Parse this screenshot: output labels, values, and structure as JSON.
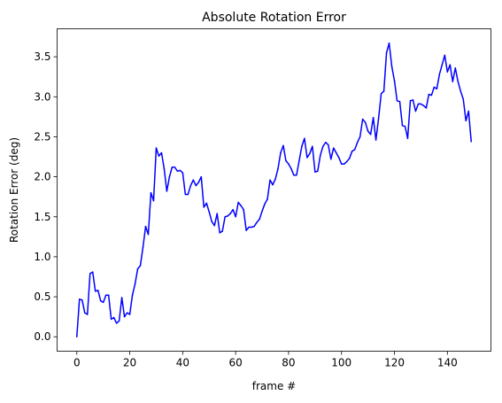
{
  "chart_data": {
    "type": "line",
    "title": "Absolute Rotation Error",
    "xlabel": "frame #",
    "ylabel": "Rotation Error (deg)",
    "xlim": [
      -7.45,
      156.45
    ],
    "ylim": [
      -0.18,
      3.85
    ],
    "grid": false,
    "x_ticks": [
      0,
      20,
      40,
      60,
      80,
      100,
      120,
      140
    ],
    "x_tick_labels": [
      "0",
      "20",
      "40",
      "60",
      "80",
      "100",
      "120",
      "140"
    ],
    "y_ticks": [
      0.0,
      0.5,
      1.0,
      1.5,
      2.0,
      2.5,
      3.0,
      3.5
    ],
    "y_tick_labels": [
      "0.0",
      "0.5",
      "1.0",
      "1.5",
      "2.0",
      "2.5",
      "3.0",
      "3.5"
    ],
    "line_color": "#0000ff",
    "series": [
      {
        "name": "",
        "x": [
          0,
          1,
          2,
          3,
          4,
          5,
          6,
          7,
          8,
          9,
          10,
          11,
          12,
          13,
          14,
          15,
          16,
          17,
          18,
          19,
          20,
          21,
          22,
          23,
          24,
          25,
          26,
          27,
          28,
          29,
          30,
          31,
          32,
          33,
          34,
          35,
          36,
          37,
          38,
          39,
          40,
          41,
          42,
          43,
          44,
          45,
          46,
          47,
          48,
          49,
          50,
          51,
          52,
          53,
          54,
          55,
          56,
          57,
          58,
          59,
          60,
          61,
          62,
          63,
          64,
          65,
          66,
          67,
          68,
          69,
          70,
          71,
          72,
          73,
          74,
          75,
          76,
          77,
          78,
          79,
          80,
          81,
          82,
          83,
          84,
          85,
          86,
          87,
          88,
          89,
          90,
          91,
          92,
          93,
          94,
          95,
          96,
          97,
          98,
          99,
          100,
          101,
          102,
          103,
          104,
          105,
          106,
          107,
          108,
          109,
          110,
          111,
          112,
          113,
          114,
          115,
          116,
          117,
          118,
          119,
          120,
          121,
          122,
          123,
          124,
          125,
          126,
          127,
          128,
          129,
          130,
          131,
          132,
          133,
          134,
          135,
          136,
          137,
          138,
          139,
          140,
          141,
          142,
          143,
          144,
          145,
          146,
          147,
          148,
          149
        ],
        "y": [
          0.0,
          0.47,
          0.46,
          0.3,
          0.28,
          0.79,
          0.81,
          0.57,
          0.58,
          0.45,
          0.43,
          0.52,
          0.52,
          0.22,
          0.24,
          0.17,
          0.2,
          0.49,
          0.25,
          0.3,
          0.28,
          0.52,
          0.66,
          0.85,
          0.89,
          1.12,
          1.38,
          1.28,
          1.8,
          1.7,
          2.36,
          2.26,
          2.3,
          2.1,
          1.82,
          2.0,
          2.12,
          2.12,
          2.07,
          2.08,
          2.05,
          1.78,
          1.78,
          1.89,
          1.96,
          1.89,
          1.93,
          2.0,
          1.62,
          1.67,
          1.56,
          1.44,
          1.39,
          1.54,
          1.3,
          1.32,
          1.5,
          1.51,
          1.54,
          1.59,
          1.5,
          1.68,
          1.64,
          1.59,
          1.33,
          1.37,
          1.37,
          1.38,
          1.43,
          1.47,
          1.57,
          1.66,
          1.72,
          1.96,
          1.9,
          1.97,
          2.1,
          2.3,
          2.39,
          2.2,
          2.16,
          2.1,
          2.02,
          2.02,
          2.2,
          2.38,
          2.48,
          2.24,
          2.29,
          2.38,
          2.06,
          2.07,
          2.27,
          2.38,
          2.43,
          2.4,
          2.22,
          2.36,
          2.3,
          2.24,
          2.16,
          2.16,
          2.19,
          2.23,
          2.32,
          2.34,
          2.43,
          2.5,
          2.72,
          2.68,
          2.57,
          2.53,
          2.74,
          2.46,
          2.73,
          3.04,
          3.07,
          3.55,
          3.67,
          3.38,
          3.2,
          2.95,
          2.94,
          2.64,
          2.63,
          2.48,
          2.95,
          2.96,
          2.82,
          2.91,
          2.91,
          2.89,
          2.86,
          3.03,
          3.02,
          3.12,
          3.1,
          3.28,
          3.4,
          3.52,
          3.31,
          3.4,
          3.19,
          3.36,
          3.19,
          3.07,
          2.97,
          2.7,
          2.82,
          2.44
        ]
      }
    ]
  }
}
